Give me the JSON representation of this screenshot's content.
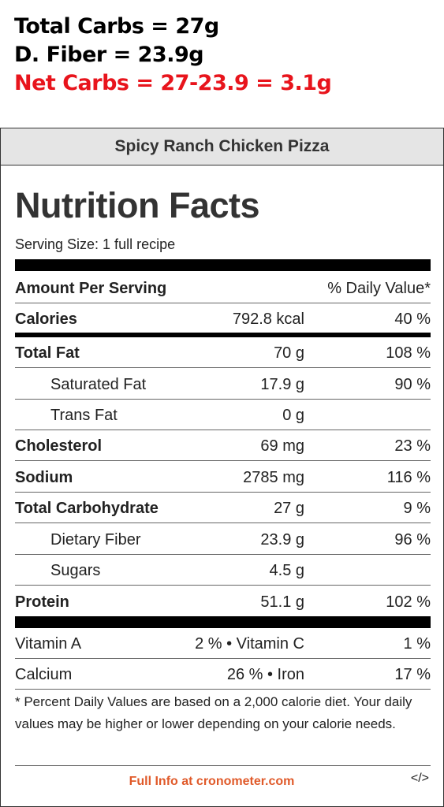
{
  "annotation": {
    "total_carbs": "Total Carbs = 27g",
    "fiber": "D. Fiber = 23.9g",
    "net_carbs": "Net Carbs = 27-23.9 = 3.1g"
  },
  "label": {
    "recipe_name": "Spicy Ranch Chicken Pizza",
    "title": "Nutrition Facts",
    "serving_size": "Serving Size: 1 full recipe",
    "amount_header": "Amount Per Serving",
    "dv_header": "% Daily Value*",
    "calories": {
      "name": "Calories",
      "amount": "792.8 kcal",
      "dv": "40 %"
    },
    "nutrients": [
      {
        "name": "Total Fat",
        "amount": "70 g",
        "dv": "108 %"
      },
      {
        "name": "Saturated Fat",
        "amount": "17.9 g",
        "dv": "90 %"
      },
      {
        "name": "Trans Fat",
        "amount": "0 g",
        "dv": ""
      },
      {
        "name": "Cholesterol",
        "amount": "69 mg",
        "dv": "23 %"
      },
      {
        "name": "Sodium",
        "amount": "2785 mg",
        "dv": "116 %"
      },
      {
        "name": "Total Carbohydrate",
        "amount": "27 g",
        "dv": "9 %"
      },
      {
        "name": "Dietary Fiber",
        "amount": "23.9 g",
        "dv": "96 %"
      },
      {
        "name": "Sugars",
        "amount": "4.5 g",
        "dv": ""
      },
      {
        "name": "Protein",
        "amount": "51.1 g",
        "dv": "102 %"
      }
    ],
    "vitamins": [
      {
        "left_name": "Vitamin A",
        "left_dv": "2 % • Vitamin C",
        "right_dv": "1 %"
      },
      {
        "left_name": "Calcium",
        "left_dv": "26 % • Iron",
        "right_dv": "17 %"
      }
    ],
    "footnote": "* Percent Daily Values are based on a 2,000 calorie diet. Your daily values may be higher or lower depending on your calorie needs.",
    "full_info_link": "Full Info at cronometer.com",
    "embed_label": "</>"
  }
}
